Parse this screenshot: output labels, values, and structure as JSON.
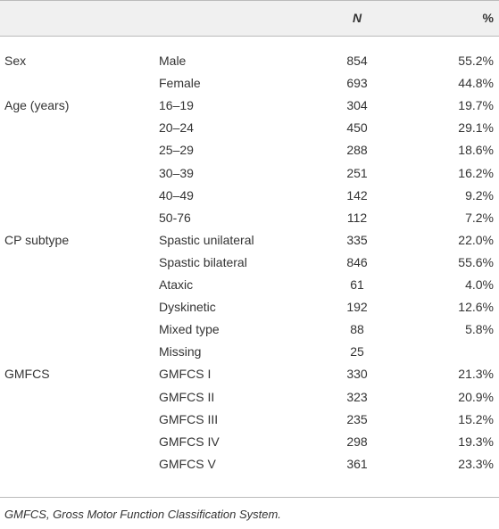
{
  "header": {
    "n": "N",
    "pct": "%"
  },
  "groups": [
    {
      "label": "Sex",
      "rows": [
        {
          "label": "Male",
          "n": 854,
          "pct": "55.2%"
        },
        {
          "label": "Female",
          "n": 693,
          "pct": "44.8%"
        }
      ]
    },
    {
      "label": "Age (years)",
      "rows": [
        {
          "label": "16–19",
          "n": 304,
          "pct": "19.7%"
        },
        {
          "label": "20–24",
          "n": 450,
          "pct": "29.1%"
        },
        {
          "label": "25–29",
          "n": 288,
          "pct": "18.6%"
        },
        {
          "label": "30–39",
          "n": 251,
          "pct": "16.2%"
        },
        {
          "label": "40–49",
          "n": 142,
          "pct": "9.2%"
        },
        {
          "label": "50-76",
          "n": 112,
          "pct": "7.2%"
        }
      ]
    },
    {
      "label": "CP subtype",
      "rows": [
        {
          "label": "Spastic unilateral",
          "n": 335,
          "pct": "22.0%"
        },
        {
          "label": "Spastic bilateral",
          "n": 846,
          "pct": "55.6%"
        },
        {
          "label": "Ataxic",
          "n": 61,
          "pct": "4.0%"
        },
        {
          "label": "Dyskinetic",
          "n": 192,
          "pct": "12.6%"
        },
        {
          "label": "Mixed type",
          "n": 88,
          "pct": "5.8%"
        },
        {
          "label": "Missing",
          "n": 25
        }
      ]
    },
    {
      "label": "GMFCS",
      "rows": [
        {
          "label": "GMFCS I",
          "n": 330,
          "pct": "21.3%"
        },
        {
          "label": "GMFCS II",
          "n": 323,
          "pct": "20.9%"
        },
        {
          "label": "GMFCS III",
          "n": 235,
          "pct": "15.2%"
        },
        {
          "label": "GMFCS IV",
          "n": 298,
          "pct": "19.3%"
        },
        {
          "label": "GMFCS V",
          "n": 361,
          "pct": "23.3%"
        }
      ]
    }
  ],
  "footnote": "GMFCS, Gross Motor Function Classification System."
}
